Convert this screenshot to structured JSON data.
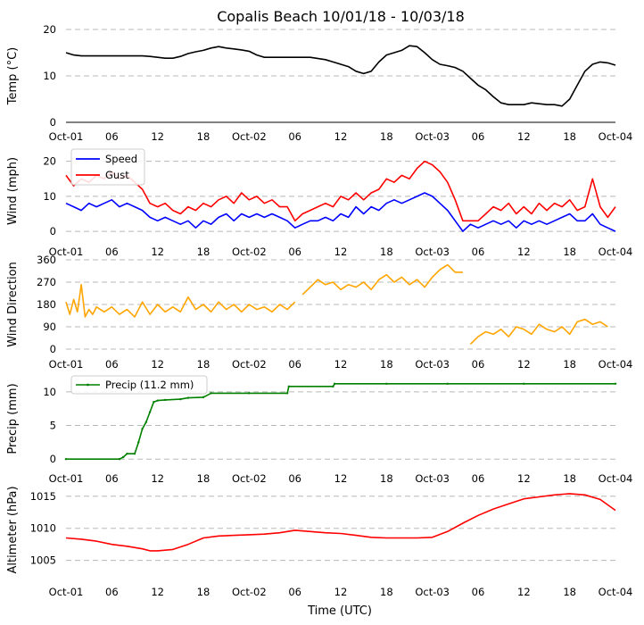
{
  "figure": {
    "title": "Copalis Beach 10/01/18 - 10/03/18",
    "xlabel": "Time (UTC)"
  },
  "chart_data": [
    {
      "name": "temperature",
      "type": "line",
      "ylabel": "Temp ($^\\circ$C)",
      "ylabel_display": "Temp (°C)",
      "xlim": [
        0,
        72
      ],
      "ylim": [
        0,
        20
      ],
      "yticks": [
        0,
        10,
        20
      ],
      "xticks": [
        0,
        6,
        12,
        18,
        24,
        30,
        36,
        42,
        48,
        54,
        60,
        66,
        72
      ],
      "xticklabels": [
        "Oct-01",
        "06",
        "12",
        "18",
        "Oct-02",
        "06",
        "12",
        "18",
        "Oct-03",
        "06",
        "12",
        "18",
        "Oct-04"
      ],
      "grid": true,
      "series": [
        {
          "color": "#000000",
          "x": [
            0,
            1,
            2,
            4,
            6,
            8,
            10,
            11,
            12,
            13,
            14,
            15,
            16,
            17,
            18,
            19,
            20,
            21,
            22,
            23,
            24,
            25,
            26,
            27,
            28,
            30,
            32,
            34,
            35,
            36,
            37,
            38,
            39,
            40,
            41,
            42,
            43,
            44,
            45,
            46,
            47,
            48,
            49,
            50,
            51,
            52,
            53,
            54,
            55,
            56,
            57,
            58,
            59,
            60,
            61,
            62,
            63,
            64,
            65,
            66,
            67,
            68,
            69,
            70,
            71,
            72
          ],
          "y": [
            15,
            14.5,
            14.3,
            14.3,
            14.3,
            14.3,
            14.3,
            14.2,
            14.0,
            13.8,
            13.8,
            14.2,
            14.8,
            15.2,
            15.5,
            16.0,
            16.3,
            16.0,
            15.8,
            15.6,
            15.3,
            14.5,
            14.0,
            14.0,
            14.0,
            14.0,
            14.0,
            13.5,
            13.0,
            12.5,
            12.0,
            11.0,
            10.5,
            11.0,
            13.0,
            14.5,
            15.0,
            15.5,
            16.5,
            16.3,
            15.0,
            13.5,
            12.5,
            12.2,
            11.8,
            11.0,
            9.5,
            8.0,
            7.0,
            5.5,
            4.2,
            3.8,
            3.8,
            3.8,
            4.2,
            4.0,
            3.8,
            3.8,
            3.5,
            5.0,
            8.0,
            11.0,
            12.5,
            13.0,
            12.8,
            12.3
          ]
        }
      ]
    },
    {
      "name": "wind",
      "type": "line",
      "ylabel": "Wind (mph)",
      "xlim": [
        0,
        72
      ],
      "ylim": [
        -1,
        24
      ],
      "yticks": [
        0,
        10,
        20
      ],
      "xticks": [
        0,
        6,
        12,
        18,
        24,
        30,
        36,
        42,
        48,
        54,
        60,
        66,
        72
      ],
      "xticklabels": [
        "Oct-01",
        "06",
        "12",
        "18",
        "Oct-02",
        "06",
        "12",
        "18",
        "Oct-03",
        "06",
        "12",
        "18",
        "Oct-04"
      ],
      "legend": "upper-left",
      "grid": true,
      "series": [
        {
          "name": "Speed",
          "color": "#0000ff",
          "x": [
            0,
            1,
            2,
            3,
            4,
            5,
            6,
            7,
            8,
            9,
            10,
            11,
            12,
            13,
            14,
            15,
            16,
            17,
            18,
            19,
            20,
            21,
            22,
            23,
            24,
            25,
            26,
            27,
            28,
            29,
            30,
            31,
            32,
            33,
            34,
            35,
            36,
            37,
            38,
            39,
            40,
            41,
            42,
            43,
            44,
            45,
            46,
            47,
            48,
            49,
            50,
            51,
            52,
            53,
            54,
            55,
            56,
            57,
            58,
            59,
            60,
            61,
            62,
            63,
            64,
            65,
            66,
            67,
            68,
            69,
            70,
            71,
            72
          ],
          "y": [
            8,
            7,
            6,
            8,
            7,
            8,
            9,
            7,
            8,
            7,
            6,
            4,
            3,
            4,
            3,
            2,
            3,
            1,
            3,
            2,
            4,
            5,
            3,
            5,
            4,
            5,
            4,
            5,
            4,
            3,
            1,
            2,
            3,
            3,
            4,
            3,
            5,
            4,
            7,
            5,
            7,
            6,
            8,
            9,
            8,
            9,
            10,
            11,
            10,
            8,
            6,
            3,
            0,
            2,
            1,
            2,
            3,
            2,
            3,
            1,
            3,
            2,
            3,
            2,
            3,
            4,
            5,
            3,
            3,
            5,
            2,
            1,
            0
          ]
        },
        {
          "name": "Gust",
          "color": "#ff0000",
          "x": [
            0,
            1,
            2,
            3,
            4,
            5,
            6,
            7,
            8,
            9,
            10,
            11,
            12,
            13,
            14,
            15,
            16,
            17,
            18,
            19,
            20,
            21,
            22,
            23,
            24,
            25,
            26,
            27,
            28,
            29,
            30,
            31,
            32,
            33,
            34,
            35,
            36,
            37,
            38,
            39,
            40,
            41,
            42,
            43,
            44,
            45,
            46,
            47,
            48,
            49,
            50,
            51,
            52,
            53,
            54,
            55,
            56,
            57,
            58,
            59,
            60,
            61,
            62,
            63,
            64,
            65,
            66,
            67,
            68,
            69,
            70,
            71,
            72
          ],
          "y": [
            16,
            13,
            15,
            14,
            16,
            15,
            17,
            15,
            16,
            14,
            12,
            8,
            7,
            8,
            6,
            5,
            7,
            6,
            8,
            7,
            9,
            10,
            8,
            11,
            9,
            10,
            8,
            9,
            7,
            7,
            3,
            5,
            6,
            7,
            8,
            7,
            10,
            9,
            11,
            9,
            11,
            12,
            15,
            14,
            16,
            15,
            18,
            20,
            19,
            17,
            14,
            9,
            3,
            3,
            3,
            5,
            7,
            6,
            8,
            5,
            7,
            5,
            8,
            6,
            8,
            7,
            9,
            6,
            7,
            15,
            7,
            4,
            7
          ]
        }
      ]
    },
    {
      "name": "wind-direction",
      "type": "line",
      "ylabel": "Wind Direction",
      "xlim": [
        0,
        72
      ],
      "ylim": [
        0,
        360
      ],
      "yticks": [
        0,
        90,
        180,
        270,
        360
      ],
      "xticks": [
        0,
        6,
        12,
        18,
        24,
        30,
        36,
        42,
        48,
        54,
        60,
        66,
        72
      ],
      "xticklabels": [
        "Oct-01",
        "06",
        "12",
        "18",
        "Oct-02",
        "06",
        "12",
        "18",
        "Oct-03",
        "06",
        "12",
        "18",
        "Oct-04"
      ],
      "grid": true,
      "series": [
        {
          "color": "#ffa500",
          "segments": [
            {
              "x": [
                0,
                0.5,
                1,
                1.5,
                2,
                2.5,
                3,
                3.5,
                4,
                5,
                6,
                7,
                8,
                9,
                10,
                11,
                12,
                13,
                14,
                15,
                16,
                17,
                18,
                19,
                20,
                21,
                22,
                23,
                24,
                25,
                26,
                27,
                28,
                29,
                30
              ],
              "y": [
                190,
                140,
                200,
                150,
                260,
                130,
                160,
                140,
                170,
                150,
                170,
                140,
                160,
                130,
                190,
                140,
                180,
                150,
                170,
                150,
                210,
                160,
                180,
                150,
                190,
                160,
                180,
                150,
                180,
                160,
                170,
                150,
                180,
                160,
                190
              ]
            },
            {
              "x": [
                31,
                32,
                33,
                34,
                35,
                36,
                37,
                38,
                39,
                40,
                41,
                42,
                43,
                44,
                45,
                46,
                47,
                48,
                49,
                50,
                51,
                52
              ],
              "y": [
                220,
                250,
                280,
                260,
                270,
                240,
                260,
                250,
                270,
                240,
                280,
                300,
                270,
                290,
                260,
                280,
                250,
                290,
                320,
                340,
                310,
                310
              ]
            },
            {
              "x": [
                53,
                54,
                55,
                56,
                57,
                58,
                59,
                60,
                61,
                62,
                63,
                64,
                65,
                66,
                67,
                68,
                69,
                70,
                71
              ],
              "y": [
                20,
                50,
                70,
                60,
                80,
                50,
                90,
                80,
                60,
                100,
                80,
                70,
                90,
                60,
                110,
                120,
                100,
                110,
                90
              ]
            }
          ]
        }
      ]
    },
    {
      "name": "precip",
      "type": "line",
      "ylabel": "Precip (mm)",
      "xlim": [
        0,
        72
      ],
      "ylim": [
        -0.5,
        12.5
      ],
      "yticks": [
        0,
        5,
        10
      ],
      "xticks": [
        0,
        6,
        12,
        18,
        24,
        30,
        36,
        42,
        48,
        54,
        60,
        66,
        72
      ],
      "xticklabels": [
        "Oct-01",
        "06",
        "12",
        "18",
        "Oct-02",
        "06",
        "12",
        "18",
        "Oct-03",
        "06",
        "12",
        "18",
        "Oct-04"
      ],
      "legend": "upper-left",
      "grid": true,
      "series": [
        {
          "name": "Precip (11.2 mm)",
          "color": "#008000",
          "x": [
            0,
            7,
            7.5,
            8,
            9,
            9.5,
            10,
            10.5,
            11,
            11.5,
            12,
            13,
            15,
            16,
            18,
            19,
            24,
            29,
            29.2,
            35,
            35.2,
            42,
            50,
            60,
            72
          ],
          "y": [
            0,
            0,
            0.3,
            0.8,
            0.8,
            2.5,
            4.5,
            5.5,
            7.0,
            8.5,
            8.7,
            8.8,
            8.9,
            9.1,
            9.2,
            9.8,
            9.8,
            9.8,
            10.8,
            10.8,
            11.2,
            11.2,
            11.2,
            11.2,
            11.2
          ]
        }
      ]
    },
    {
      "name": "altimeter",
      "type": "line",
      "ylabel": "Altimeter (hPa)",
      "xlim": [
        0,
        72
      ],
      "ylim": [
        1003,
        1016.5
      ],
      "yticks": [
        1005,
        1010,
        1015
      ],
      "xticks": [
        0,
        6,
        12,
        18,
        24,
        30,
        36,
        42,
        48,
        54,
        60,
        66,
        72
      ],
      "xticklabels": [
        "Oct-01",
        "06",
        "12",
        "18",
        "Oct-02",
        "06",
        "12",
        "18",
        "Oct-03",
        "06",
        "12",
        "18",
        "Oct-04"
      ],
      "grid": true,
      "series": [
        {
          "color": "#ff0000",
          "x": [
            0,
            2,
            4,
            6,
            8,
            10,
            11,
            12,
            14,
            16,
            18,
            20,
            22,
            24,
            26,
            28,
            30,
            32,
            34,
            36,
            38,
            40,
            42,
            44,
            46,
            48,
            50,
            52,
            54,
            56,
            58,
            60,
            62,
            64,
            66,
            68,
            70,
            72
          ],
          "y": [
            1008.5,
            1008.3,
            1008.0,
            1007.5,
            1007.2,
            1006.8,
            1006.5,
            1006.5,
            1006.7,
            1007.5,
            1008.5,
            1008.8,
            1008.9,
            1009.0,
            1009.1,
            1009.3,
            1009.7,
            1009.5,
            1009.3,
            1009.2,
            1008.9,
            1008.6,
            1008.5,
            1008.5,
            1008.5,
            1008.6,
            1009.5,
            1010.8,
            1012.0,
            1013.0,
            1013.8,
            1014.6,
            1014.9,
            1015.2,
            1015.4,
            1015.2,
            1014.5,
            1012.8
          ]
        }
      ]
    }
  ]
}
